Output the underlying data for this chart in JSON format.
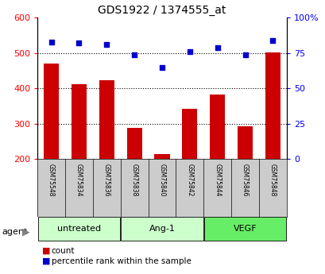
{
  "title": "GDS1922 / 1374555_at",
  "samples": [
    "GSM75548",
    "GSM75834",
    "GSM75836",
    "GSM75838",
    "GSM75840",
    "GSM75842",
    "GSM75844",
    "GSM75846",
    "GSM75848"
  ],
  "counts": [
    470,
    412,
    422,
    288,
    213,
    342,
    382,
    293,
    503
  ],
  "percentiles": [
    83,
    82,
    81,
    74,
    65,
    76,
    79,
    74,
    84
  ],
  "bar_color": "#cc0000",
  "dot_color": "#0000cc",
  "ylim_left": [
    200,
    600
  ],
  "ylim_right": [
    0,
    100
  ],
  "yticks_left": [
    200,
    300,
    400,
    500,
    600
  ],
  "yticks_right": [
    0,
    25,
    50,
    75,
    100
  ],
  "ytick_labels_right": [
    "0",
    "25",
    "50",
    "75",
    "100%"
  ],
  "grid_lines": [
    300,
    400,
    500
  ],
  "background_color": "#ffffff",
  "sample_area_color": "#cccccc",
  "group_defs": [
    {
      "label": "untreated",
      "start": 0,
      "end": 2,
      "color": "#ccffcc"
    },
    {
      "label": "Ang-1",
      "start": 3,
      "end": 5,
      "color": "#ccffcc"
    },
    {
      "label": "VEGF",
      "start": 6,
      "end": 8,
      "color": "#66ee66"
    }
  ],
  "agent_label": "agent",
  "legend_items": [
    {
      "color": "#cc0000",
      "label": "count"
    },
    {
      "color": "#0000cc",
      "label": "percentile rank within the sample"
    }
  ]
}
